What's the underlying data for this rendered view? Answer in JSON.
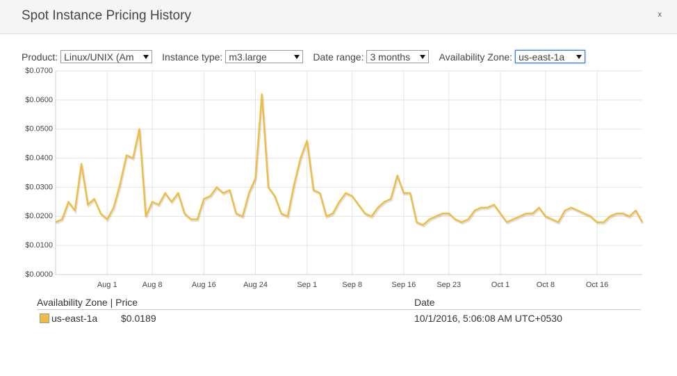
{
  "dialog": {
    "title": "Spot Instance Pricing History",
    "close": "x"
  },
  "controls": [
    {
      "label": "Product:",
      "value": "Linux/UNIX (Am"
    },
    {
      "label": "Instance type:",
      "value": "m3.large"
    },
    {
      "label": "Date range:",
      "value": "3 months"
    },
    {
      "label": "Availability Zone:",
      "value": "us-east-1a"
    }
  ],
  "chart_data": {
    "type": "line",
    "categories": [
      null,
      null,
      null,
      null,
      null,
      null,
      null,
      null,
      "Aug 1",
      null,
      null,
      null,
      null,
      null,
      null,
      "Aug 8",
      null,
      null,
      null,
      null,
      null,
      null,
      null,
      "Aug 16",
      null,
      null,
      null,
      null,
      null,
      null,
      null,
      "Aug 24",
      null,
      null,
      null,
      null,
      null,
      null,
      null,
      "Sep 1",
      null,
      null,
      null,
      null,
      null,
      null,
      "Sep 8",
      null,
      null,
      null,
      null,
      null,
      null,
      null,
      "Sep 16",
      null,
      null,
      null,
      null,
      null,
      null,
      "Sep 23",
      null,
      null,
      null,
      null,
      null,
      null,
      null,
      "Oct 1",
      null,
      null,
      null,
      null,
      null,
      null,
      "Oct 8",
      null,
      null,
      null,
      null,
      null,
      null,
      null,
      "Oct 16",
      null,
      null,
      null,
      null,
      null,
      null,
      null
    ],
    "series": [
      {
        "name": "us-east-1a",
        "color": "#efbd45",
        "values": [
          0.018,
          0.019,
          0.025,
          0.022,
          0.038,
          0.024,
          0.026,
          0.021,
          0.019,
          0.023,
          0.031,
          0.041,
          0.04,
          0.05,
          0.02,
          0.025,
          0.024,
          0.028,
          0.025,
          0.028,
          0.021,
          0.019,
          0.019,
          0.026,
          0.027,
          0.03,
          0.028,
          0.029,
          0.021,
          0.02,
          0.028,
          0.033,
          0.062,
          0.03,
          0.027,
          0.021,
          0.02,
          0.031,
          0.04,
          0.046,
          0.029,
          0.028,
          0.02,
          0.021,
          0.025,
          0.028,
          0.027,
          0.024,
          0.021,
          0.02,
          0.023,
          0.025,
          0.026,
          0.034,
          0.028,
          0.028,
          0.018,
          0.017,
          0.019,
          0.02,
          0.021,
          0.021,
          0.019,
          0.018,
          0.019,
          0.022,
          0.023,
          0.023,
          0.024,
          0.021,
          0.018,
          0.019,
          0.02,
          0.021,
          0.021,
          0.023,
          0.02,
          0.019,
          0.018,
          0.022,
          0.023,
          0.022,
          0.021,
          0.02,
          0.018,
          0.018,
          0.02,
          0.021,
          0.021,
          0.02,
          0.022,
          0.018
        ]
      }
    ],
    "ylim": [
      0,
      0.07
    ],
    "yticks": [
      {
        "value": 0,
        "label": "$0.0000"
      },
      {
        "value": 0.01,
        "label": "$0.0100"
      },
      {
        "value": 0.02,
        "label": "$0.0200"
      },
      {
        "value": 0.03,
        "label": "$0.0300"
      },
      {
        "value": 0.04,
        "label": "$0.0400"
      },
      {
        "value": 0.05,
        "label": "$0.0500"
      },
      {
        "value": 0.06,
        "label": "$0.0600"
      },
      {
        "value": 0.07,
        "label": "$0.0700"
      }
    ],
    "grid": true
  },
  "legend_table": {
    "headers": [
      "Availability Zone | Price",
      "Date"
    ],
    "price": "$0.0189",
    "date": "10/1/2016, 5:06:08 AM UTC+0530"
  }
}
